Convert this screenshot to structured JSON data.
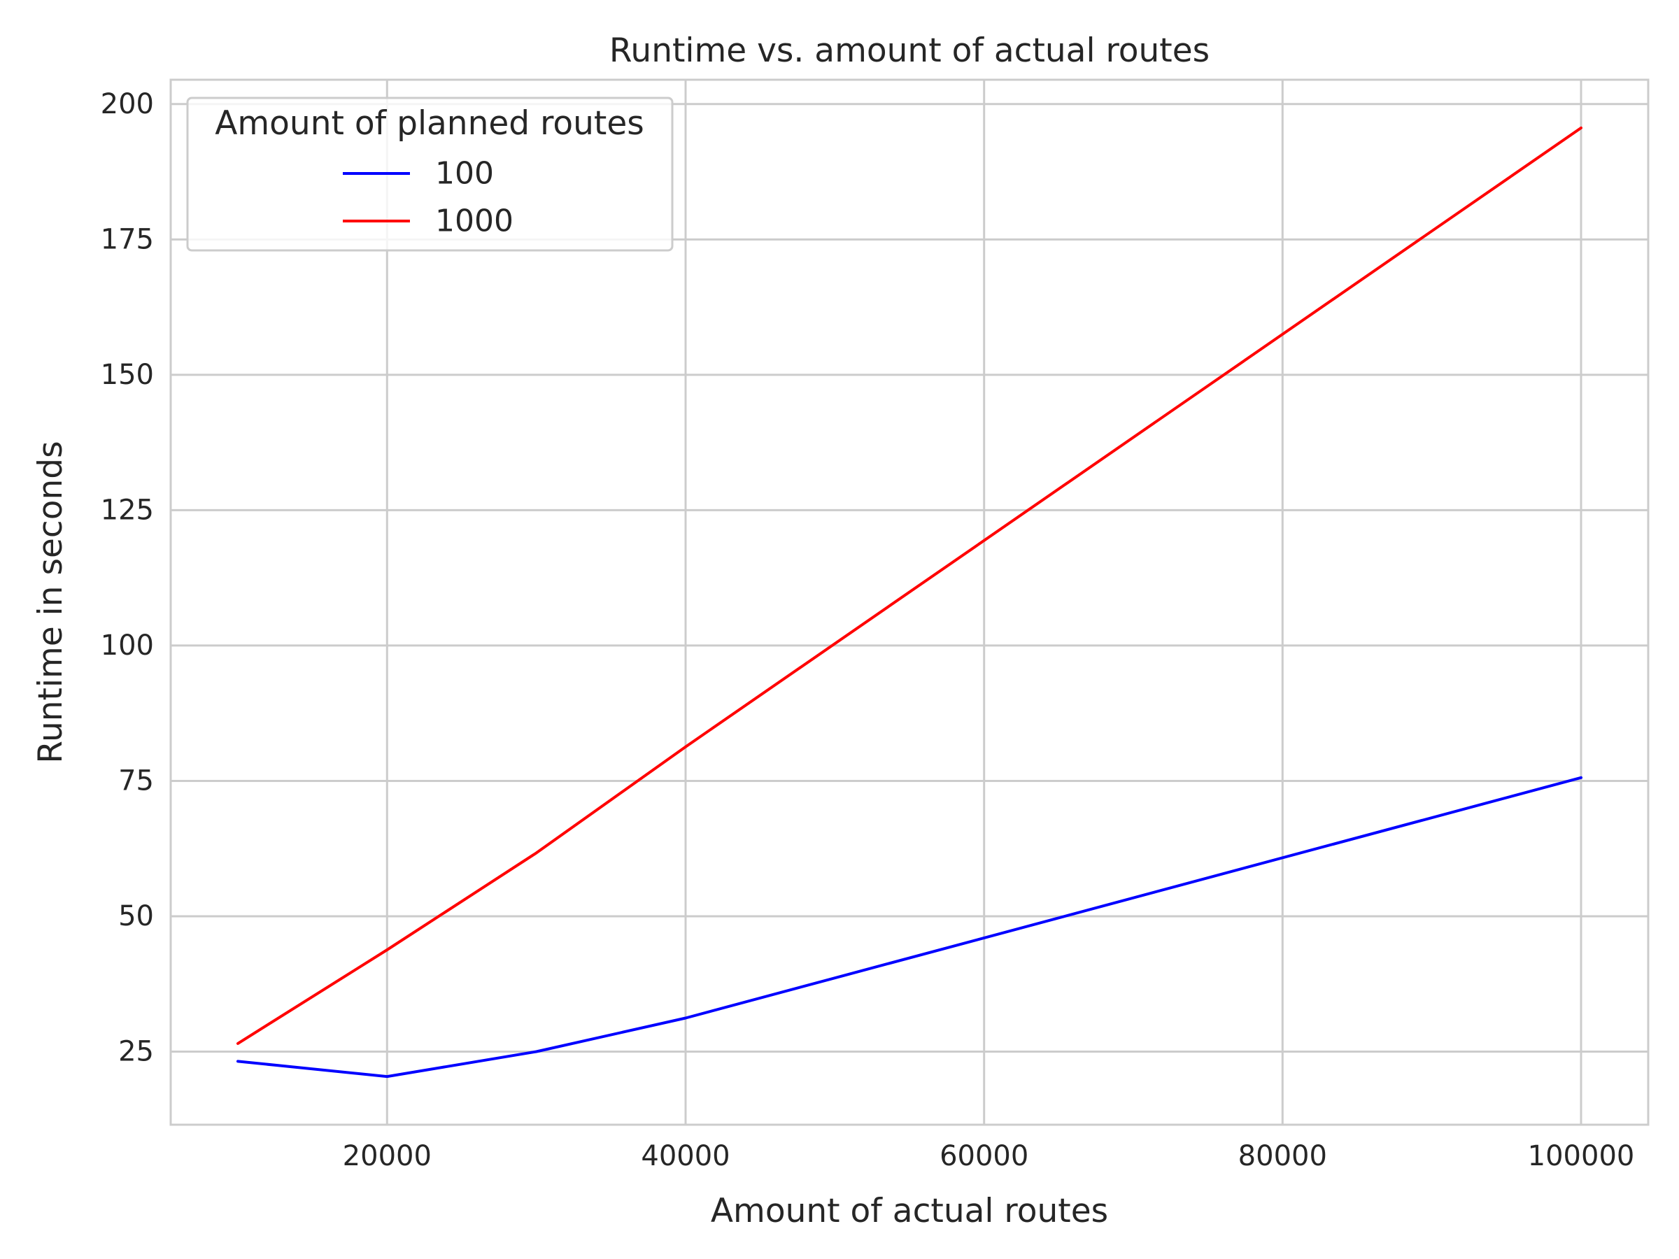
{
  "chart_data": {
    "type": "line",
    "title": "Runtime vs. amount of actual routes",
    "xlabel": "Amount of actual routes",
    "ylabel": "Runtime in seconds",
    "x": [
      10000,
      20000,
      30000,
      40000,
      100000
    ],
    "xlim": [
      5500,
      104500
    ],
    "ylim": [
      11.5,
      204.5
    ],
    "xticks": [
      20000,
      40000,
      60000,
      80000,
      100000
    ],
    "yticks": [
      25,
      50,
      75,
      100,
      125,
      150,
      175,
      200
    ],
    "grid": true,
    "legend": {
      "title": "Amount of planned routes",
      "placement": "top-left"
    },
    "series": [
      {
        "name": "100",
        "color": "#0000ff",
        "values": [
          23.2,
          20.4,
          25.0,
          31.2,
          75.6
        ]
      },
      {
        "name": "1000",
        "color": "#ff0000",
        "values": [
          26.5,
          43.8,
          61.7,
          81.3,
          195.6
        ]
      }
    ]
  }
}
